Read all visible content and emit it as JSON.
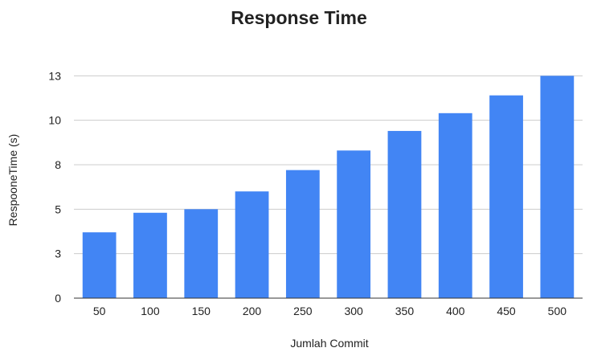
{
  "chart_data": {
    "type": "bar",
    "title": "Response Time",
    "xlabel": "Jumlah Commit",
    "ylabel": "RespooneTime (s)",
    "categories": [
      "50",
      "100",
      "150",
      "200",
      "250",
      "300",
      "350",
      "400",
      "450",
      "500"
    ],
    "series": [
      {
        "values": [
          3.7,
          4.8,
          5.0,
          6.0,
          7.2,
          8.3,
          9.4,
          10.4,
          11.4,
          12.5
        ]
      }
    ],
    "yticks": [
      0,
      3,
      5,
      8,
      10,
      13
    ],
    "ytick_labels": [
      "0",
      "3",
      "5",
      "8",
      "10",
      "13"
    ],
    "ylim": [
      0,
      15
    ],
    "grid": true,
    "legend": "none",
    "colors": {
      "bar": "#4285f4"
    }
  }
}
